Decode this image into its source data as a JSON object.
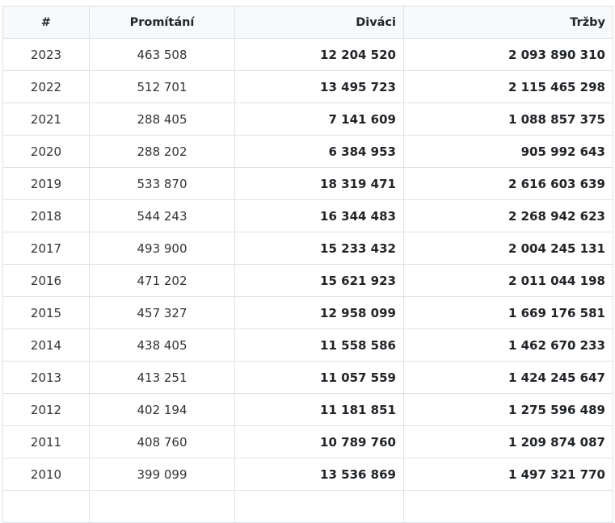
{
  "table": {
    "headers": {
      "year": "#",
      "screenings": "Promítání",
      "viewers": "Diváci",
      "revenue": "Tržby"
    },
    "rows": [
      {
        "year": "2023",
        "screenings": "463 508",
        "viewers": "12 204 520",
        "revenue": "2 093 890 310"
      },
      {
        "year": "2022",
        "screenings": "512 701",
        "viewers": "13 495 723",
        "revenue": "2 115 465 298"
      },
      {
        "year": "2021",
        "screenings": "288 405",
        "viewers": "7 141 609",
        "revenue": "1 088 857 375"
      },
      {
        "year": "2020",
        "screenings": "288 202",
        "viewers": "6 384 953",
        "revenue": "905 992 643"
      },
      {
        "year": "2019",
        "screenings": "533 870",
        "viewers": "18 319 471",
        "revenue": "2 616 603 639"
      },
      {
        "year": "2018",
        "screenings": "544 243",
        "viewers": "16 344 483",
        "revenue": "2 268 942 623"
      },
      {
        "year": "2017",
        "screenings": "493 900",
        "viewers": "15 233 432",
        "revenue": "2 004 245 131"
      },
      {
        "year": "2016",
        "screenings": "471 202",
        "viewers": "15 621 923",
        "revenue": "2 011 044 198"
      },
      {
        "year": "2015",
        "screenings": "457 327",
        "viewers": "12 958 099",
        "revenue": "1 669 176 581"
      },
      {
        "year": "2014",
        "screenings": "438 405",
        "viewers": "11 558 586",
        "revenue": "1 462 670 233"
      },
      {
        "year": "2013",
        "screenings": "413 251",
        "viewers": "11 057 559",
        "revenue": "1 424 245 647"
      },
      {
        "year": "2012",
        "screenings": "402 194",
        "viewers": "11 181 851",
        "revenue": "1 275 596 489"
      },
      {
        "year": "2011",
        "screenings": "408 760",
        "viewers": "10 789 760",
        "revenue": "1 209 874 087"
      },
      {
        "year": "2010",
        "screenings": "399 099",
        "viewers": "13 536 869",
        "revenue": "1 497 321 770"
      },
      {
        "year": "",
        "screenings": "",
        "viewers": "",
        "revenue": ""
      }
    ]
  }
}
